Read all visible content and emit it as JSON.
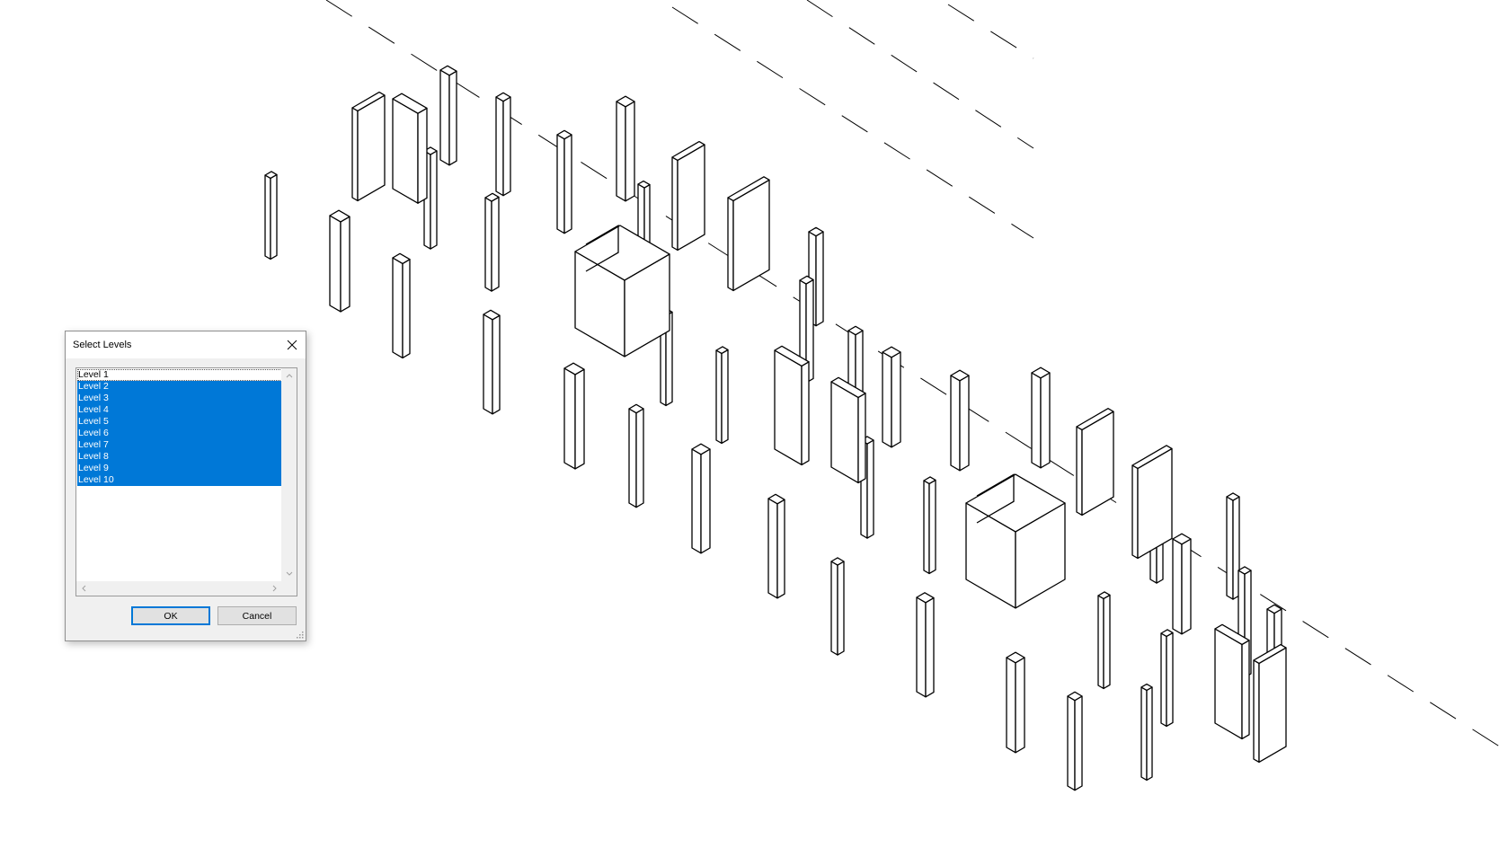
{
  "dialog": {
    "title": "Select Levels",
    "levels": [
      {
        "label": "Level 1",
        "selected": false
      },
      {
        "label": "Level 2",
        "selected": true
      },
      {
        "label": "Level 3",
        "selected": true
      },
      {
        "label": "Level 4",
        "selected": true
      },
      {
        "label": "Level 5",
        "selected": true
      },
      {
        "label": "Level 6",
        "selected": true
      },
      {
        "label": "Level 7",
        "selected": true
      },
      {
        "label": "Level 8",
        "selected": true
      },
      {
        "label": "Level 9",
        "selected": true
      },
      {
        "label": "Level 10",
        "selected": true
      }
    ],
    "ok_label": "OK",
    "cancel_label": "Cancel"
  },
  "colors": {
    "selection": "#0078d7",
    "model_lines": "#000000",
    "focus_border": "#0078d7"
  },
  "icons": {
    "close": "close-icon",
    "scroll_up": "chevron-up-icon",
    "scroll_down": "chevron-down-icon",
    "scroll_left": "chevron-left-icon",
    "scroll_right": "chevron-right-icon",
    "resize": "resize-grip-icon"
  }
}
